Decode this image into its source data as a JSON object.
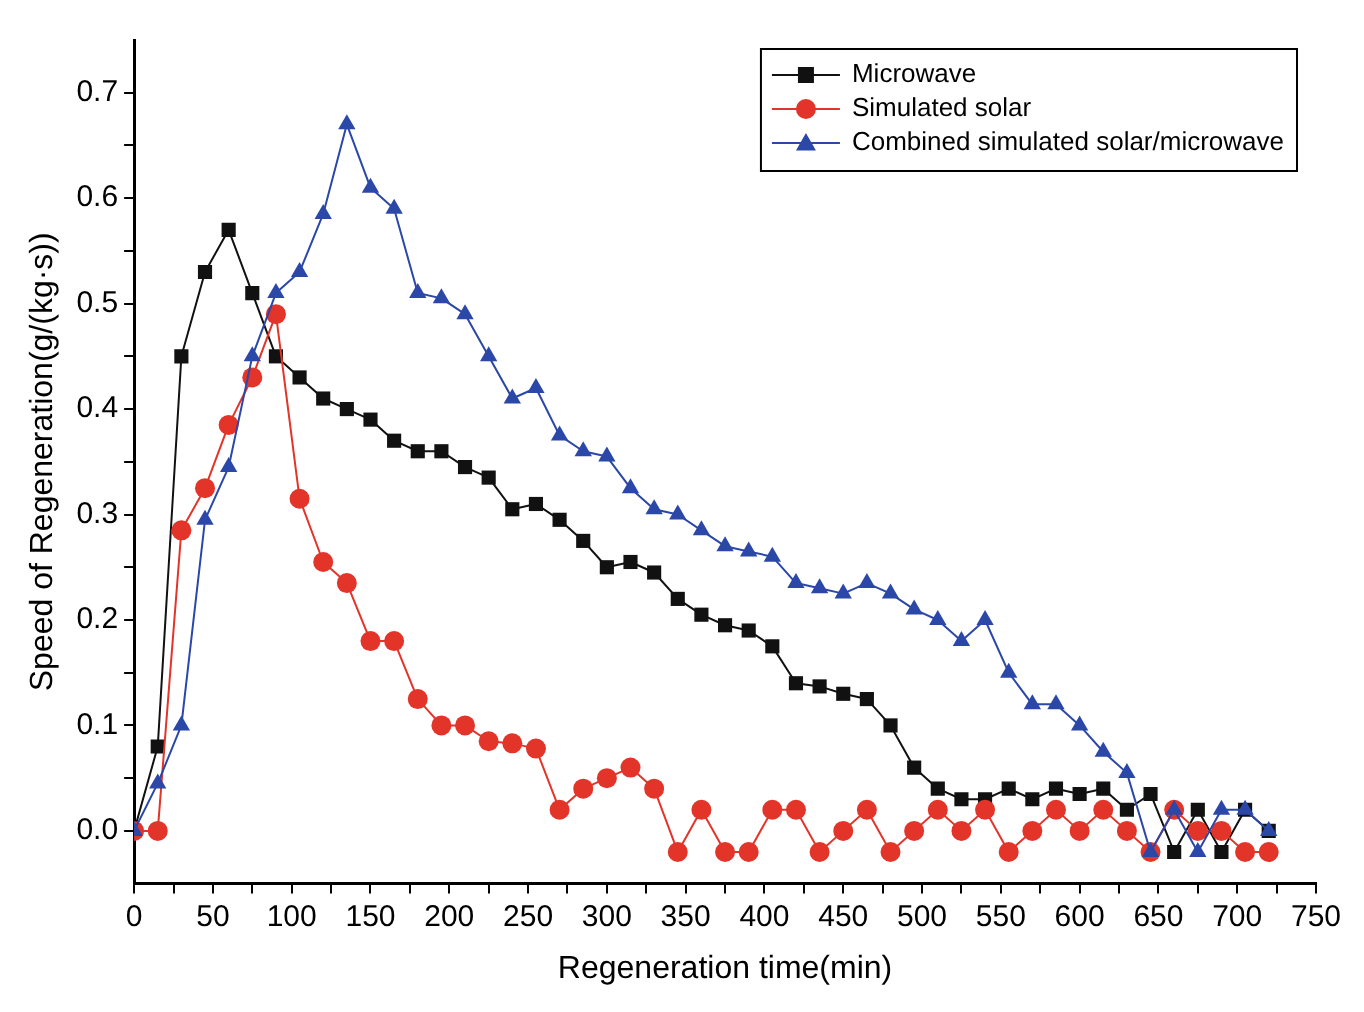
{
  "chart_data": {
    "type": "line",
    "xlabel": "Regeneration time(min)",
    "ylabel": "Speed of Regeneration(g/(kg·s))",
    "x": [
      0,
      15,
      30,
      45,
      60,
      75,
      90,
      105,
      120,
      135,
      150,
      165,
      180,
      195,
      210,
      225,
      240,
      255,
      270,
      285,
      300,
      315,
      330,
      345,
      360,
      375,
      390,
      405,
      420,
      435,
      450,
      465,
      480,
      495,
      510,
      525,
      540,
      555,
      570,
      585,
      600,
      615,
      630,
      645,
      660,
      675,
      690,
      705,
      720
    ],
    "series": [
      {
        "name": "Microwave",
        "color": "#111111",
        "marker": "square",
        "values": [
          0,
          0.08,
          0.45,
          0.53,
          0.57,
          0.51,
          0.45,
          0.43,
          0.41,
          0.4,
          0.39,
          0.37,
          0.36,
          0.36,
          0.345,
          0.335,
          0.305,
          0.31,
          0.295,
          0.275,
          0.25,
          0.255,
          0.245,
          0.22,
          0.205,
          0.195,
          0.19,
          0.175,
          0.14,
          0.137,
          0.13,
          0.125,
          0.1,
          0.06,
          0.04,
          0.03,
          0.03,
          0.04,
          0.03,
          0.04,
          0.035,
          0.04,
          0.02,
          0.035,
          -0.02,
          0.02,
          -0.02,
          0.02,
          0
        ]
      },
      {
        "name": "Simulated solar",
        "color": "#e3342a",
        "marker": "circle",
        "values": [
          0,
          0,
          0.285,
          0.325,
          0.385,
          0.43,
          0.49,
          0.315,
          0.255,
          0.235,
          0.18,
          0.18,
          0.125,
          0.1,
          0.1,
          0.085,
          0.083,
          0.078,
          0.02,
          0.04,
          0.05,
          0.06,
          0.04,
          -0.02,
          0.02,
          -0.02,
          -0.02,
          0.02,
          0.02,
          -0.02,
          0,
          0.02,
          -0.02,
          0,
          0.02,
          0,
          0.02,
          -0.02,
          0,
          0.02,
          0,
          0.02,
          0,
          -0.02,
          0.02,
          0,
          0,
          -0.02,
          -0.02
        ]
      },
      {
        "name": "Combined simulated solar/microwave",
        "color": "#2b47a8",
        "marker": "triangle",
        "values": [
          0,
          0.045,
          0.1,
          0.295,
          0.345,
          0.45,
          0.51,
          0.53,
          0.585,
          0.67,
          0.61,
          0.59,
          0.51,
          0.505,
          0.49,
          0.45,
          0.41,
          0.42,
          0.375,
          0.36,
          0.355,
          0.325,
          0.305,
          0.3,
          0.285,
          0.27,
          0.265,
          0.26,
          0.235,
          0.23,
          0.225,
          0.235,
          0.225,
          0.21,
          0.2,
          0.18,
          0.2,
          0.15,
          0.12,
          0.12,
          0.1,
          0.075,
          0.055,
          -0.02,
          0.02,
          -0.02,
          0.02,
          0.02,
          0
        ]
      }
    ],
    "xlim": [
      0,
      750
    ],
    "xticks": [
      0,
      {
        "value": 25,
        "label": null
      },
      50,
      {
        "value": 75,
        "label": null
      },
      100,
      {
        "value": 125,
        "label": null
      },
      150,
      {
        "value": 175,
        "label": null
      },
      200,
      {
        "value": 225,
        "label": null
      },
      250,
      {
        "value": 275,
        "label": null
      },
      300,
      {
        "value": 325,
        "label": null
      },
      350,
      {
        "value": 375,
        "label": null
      },
      400,
      {
        "value": 425,
        "label": null
      },
      450,
      {
        "value": 475,
        "label": null
      },
      500,
      {
        "value": 525,
        "label": null
      },
      550,
      {
        "value": 575,
        "label": null
      },
      600,
      {
        "value": 625,
        "label": null
      },
      650,
      {
        "value": 675,
        "label": null
      },
      700,
      {
        "value": 725,
        "label": null
      },
      750
    ],
    "ylim": [
      -0.05,
      0.75
    ],
    "yticks": [
      {
        "value": 0,
        "label": "0.0"
      },
      {
        "value": 0.05,
        "label": null
      },
      {
        "value": 0.1,
        "label": "0.1"
      },
      {
        "value": 0.15,
        "label": null
      },
      {
        "value": 0.2,
        "label": "0.2"
      },
      {
        "value": 0.25,
        "label": null
      },
      {
        "value": 0.3,
        "label": "0.3"
      },
      {
        "value": 0.35,
        "label": null
      },
      {
        "value": 0.4,
        "label": "0.4"
      },
      {
        "value": 0.45,
        "label": null
      },
      {
        "value": 0.5,
        "label": "0.5"
      },
      {
        "value": 0.55,
        "label": null
      },
      {
        "value": 0.6,
        "label": "0.6"
      },
      {
        "value": 0.65,
        "label": null
      },
      {
        "value": 0.7,
        "label": "0.7"
      }
    ],
    "grid": false,
    "legend": "top right",
    "line_style": "solid"
  }
}
